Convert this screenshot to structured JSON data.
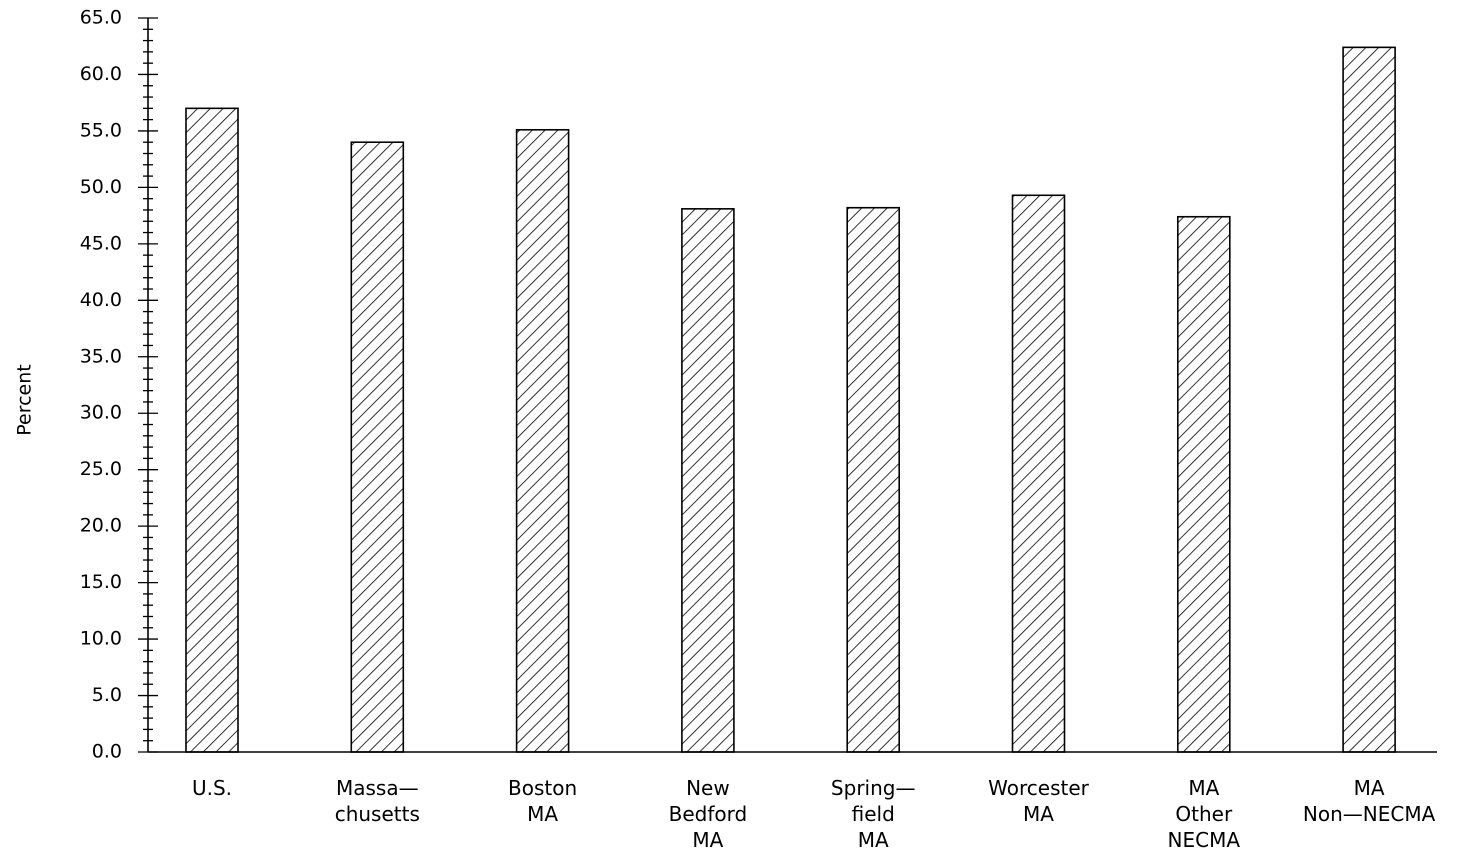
{
  "chart_data": {
    "type": "bar",
    "title": "",
    "xlabel": "",
    "ylabel": "Percent",
    "ylim": [
      0,
      65
    ],
    "yticks": [
      "0.0",
      "5.0",
      "10.0",
      "15.0",
      "20.0",
      "25.0",
      "30.0",
      "35.0",
      "40.0",
      "45.0",
      "50.0",
      "55.0",
      "60.0",
      "65.0"
    ],
    "categories": [
      [
        "U.S."
      ],
      [
        "Massa—",
        "chusetts"
      ],
      [
        "Boston",
        "MA"
      ],
      [
        "New",
        "Bedford",
        "MA"
      ],
      [
        "Spring—",
        "field",
        "MA"
      ],
      [
        "Worcester",
        "MA"
      ],
      [
        "MA",
        "Other",
        "NECMA"
      ],
      [
        "MA",
        "Non—NECMA"
      ]
    ],
    "values": [
      57.0,
      54.0,
      55.1,
      48.1,
      48.2,
      49.3,
      47.4,
      62.4
    ],
    "bar_fill": "hatched",
    "grid": false,
    "legend": "none"
  }
}
